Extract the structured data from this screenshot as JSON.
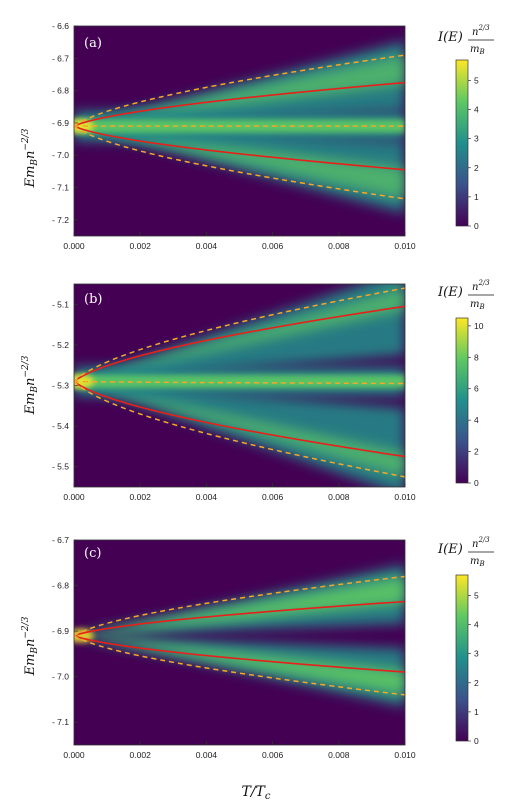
{
  "xlabel": "T/T_c",
  "ylabel": "E m_B n^-2/3",
  "colorbar_label": "I(E) n^(2/3)/m_B",
  "colors": {
    "cmap": [
      "#440154",
      "#3b528b",
      "#21908c",
      "#5dc863",
      "#fde725"
    ],
    "solid": "#e8201a",
    "dashed": "#f4a72b"
  },
  "chart_data": [
    {
      "type": "heatmap",
      "panel": "(a)",
      "xlim": [
        0,
        0.01
      ],
      "ylim": [
        -7.25,
        -6.6
      ],
      "x_ticks": [
        "0.000",
        "0.002",
        "0.004",
        "0.006",
        "0.008",
        "0.010"
      ],
      "y_ticks": [
        "- 6.6",
        "- 6.7",
        "- 6.8",
        "- 6.9",
        "- 7.0",
        "- 7.1",
        "- 7.2"
      ],
      "y_tick_values": [
        -6.6,
        -6.7,
        -6.8,
        -6.9,
        -7.0,
        -7.1,
        -7.2
      ],
      "colorbar": {
        "min": 0,
        "max": 5.7,
        "ticks": [
          0,
          1,
          2,
          3,
          4,
          5
        ]
      },
      "center": -6.91,
      "curves": [
        {
          "style": "solid",
          "x": [
            0,
            0.01
          ],
          "y": [
            -6.91,
            -6.775
          ]
        },
        {
          "style": "solid",
          "x": [
            0,
            0.01
          ],
          "y": [
            -6.91,
            -7.045
          ]
        },
        {
          "style": "dashed",
          "x": [
            0,
            0.01
          ],
          "y": [
            -6.91,
            -6.69
          ]
        },
        {
          "style": "dashed",
          "x": [
            0,
            0.01
          ],
          "y": [
            -6.91,
            -7.135
          ]
        },
        {
          "style": "dashed",
          "x": [
            0,
            0.01
          ],
          "y": [
            -6.91,
            -6.91
          ]
        }
      ]
    },
    {
      "type": "heatmap",
      "panel": "(b)",
      "xlim": [
        0,
        0.01
      ],
      "ylim": [
        -5.55,
        -5.05
      ],
      "x_ticks": [
        "0.000",
        "0.002",
        "0.004",
        "0.006",
        "0.008",
        "0.010"
      ],
      "y_ticks": [
        "- 5.1",
        "- 5.2",
        "- 5.3",
        "- 5.4",
        "- 5.5"
      ],
      "y_tick_values": [
        -5.1,
        -5.2,
        -5.3,
        -5.4,
        -5.5
      ],
      "colorbar": {
        "min": 0,
        "max": 10.5,
        "ticks": [
          0,
          2,
          4,
          6,
          8,
          10
        ]
      },
      "center": -5.29,
      "curves": [
        {
          "style": "solid",
          "x": [
            0,
            0.01
          ],
          "y": [
            -5.29,
            -5.105
          ]
        },
        {
          "style": "solid",
          "x": [
            0,
            0.01
          ],
          "y": [
            -5.29,
            -5.475
          ]
        },
        {
          "style": "dashed",
          "x": [
            0,
            0.01
          ],
          "y": [
            -5.29,
            -5.06
          ]
        },
        {
          "style": "dashed",
          "x": [
            0,
            0.01
          ],
          "y": [
            -5.29,
            -5.525
          ]
        },
        {
          "style": "dashed",
          "x": [
            0,
            0.01
          ],
          "y": [
            -5.29,
            -5.295
          ]
        }
      ]
    },
    {
      "type": "heatmap",
      "panel": "(c)",
      "xlim": [
        0,
        0.01
      ],
      "ylim": [
        -7.15,
        -6.7
      ],
      "x_ticks": [
        "0.000",
        "0.002",
        "0.004",
        "0.006",
        "0.008",
        "0.010"
      ],
      "y_ticks": [
        "- 6.7",
        "- 6.8",
        "- 6.9",
        "- 7.0",
        "- 7.1"
      ],
      "y_tick_values": [
        -6.7,
        -6.8,
        -6.9,
        -7.0,
        -7.1
      ],
      "colorbar": {
        "min": 0,
        "max": 5.7,
        "ticks": [
          0,
          1,
          2,
          3,
          4,
          5
        ]
      },
      "center": -6.91,
      "curves": [
        {
          "style": "solid",
          "x": [
            0,
            0.01
          ],
          "y": [
            -6.91,
            -6.835
          ]
        },
        {
          "style": "solid",
          "x": [
            0,
            0.01
          ],
          "y": [
            -6.91,
            -6.99
          ]
        },
        {
          "style": "dashed",
          "x": [
            0,
            0.01
          ],
          "y": [
            -6.91,
            -6.78
          ]
        },
        {
          "style": "dashed",
          "x": [
            0,
            0.01
          ],
          "y": [
            -6.91,
            -7.04
          ]
        }
      ]
    }
  ]
}
